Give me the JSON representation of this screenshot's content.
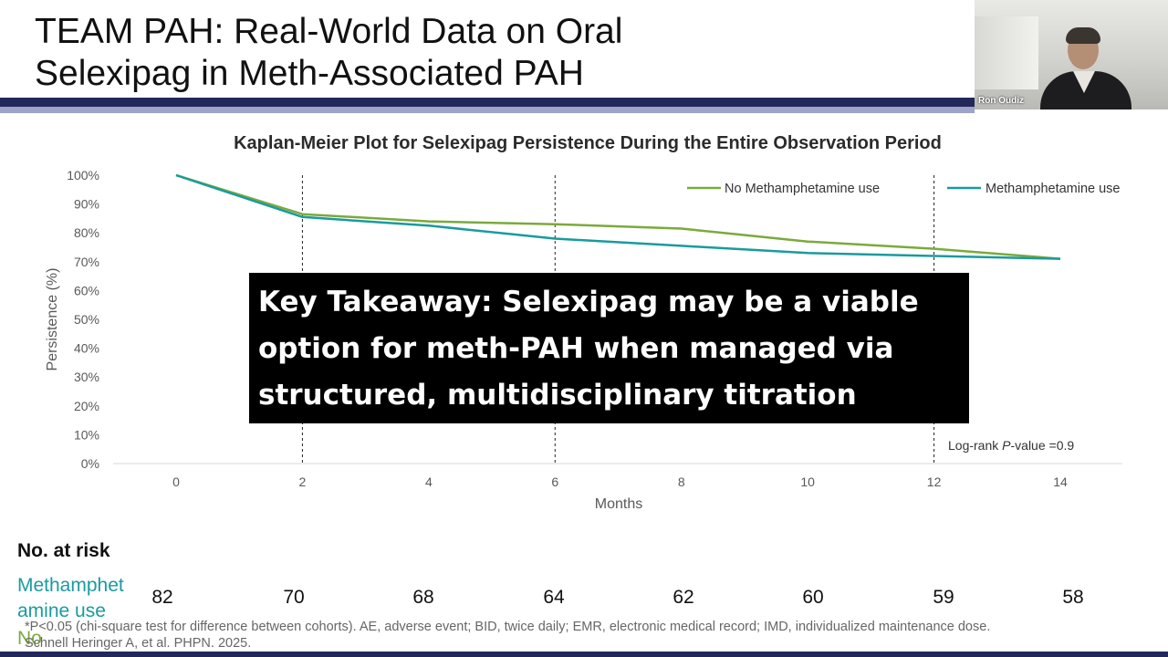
{
  "slide": {
    "title_line1": "TEAM PAH: Real-World Data on Oral",
    "title_line2": "Selexipag in Meth-Associated PAH"
  },
  "video": {
    "name": "Ron Oudiz"
  },
  "colors": {
    "no_meth": "#7aaa3c",
    "meth": "#1a9b9e",
    "header_bar": "#23285a",
    "header_bar_light": "#9ea3c8"
  },
  "chart_data": {
    "type": "line",
    "title": "Kaplan-Meier Plot for Selexipag Persistence During the Entire Observation Period",
    "xlabel": "Months",
    "ylabel": "Persistence (%)",
    "xlim": [
      0,
      14
    ],
    "ylim": [
      0,
      100
    ],
    "x_ticks": [
      "0",
      "2",
      "4",
      "6",
      "8",
      "10",
      "12",
      "14"
    ],
    "y_ticks": [
      "0%",
      "10%",
      "20%",
      "30%",
      "40%",
      "50%",
      "60%",
      "70%",
      "80%",
      "90%",
      "100%"
    ],
    "vertical_dashed_lines_at": [
      2,
      6,
      12
    ],
    "legend_position": "top-right",
    "series": [
      {
        "name": "No Methamphetamine use",
        "color": "#7aaa3c",
        "x": [
          0,
          2,
          4,
          6,
          8,
          10,
          12,
          14
        ],
        "y": [
          100,
          86.5,
          84,
          83,
          81.5,
          77,
          74.5,
          71
        ]
      },
      {
        "name": "Methamphetamine use",
        "color": "#1a9b9e",
        "x": [
          0,
          2,
          4,
          6,
          8,
          10,
          12,
          14
        ],
        "y": [
          100,
          85.5,
          82.5,
          78,
          75.5,
          73,
          72,
          71
        ]
      }
    ],
    "annotation": {
      "prefix": "Log-rank ",
      "italic": "P",
      "suffix": "-value =0.9"
    }
  },
  "takeaway": {
    "line1": "Key Takeaway: Selexipag may be a viable",
    "line2": "option for meth-PAH when managed via",
    "line3": "structured, multidisciplinary titration"
  },
  "risk_table": {
    "title": "No. at risk",
    "rows": [
      {
        "label_line1": "Methamphet",
        "label_line2": "amine use",
        "values": [
          "82",
          "70",
          "68",
          "64",
          "62",
          "60",
          "59",
          "58"
        ]
      },
      {
        "label_line1": "No"
      }
    ]
  },
  "footnote": {
    "line1": "*P<0.05 (chi-square test for difference between cohorts). AE, adverse event; BID, twice daily; EMR, electronic medical record; IMD, individualized maintenance dose.",
    "line2": "Schnell Heringer A, et al. PHPN. 2025."
  }
}
